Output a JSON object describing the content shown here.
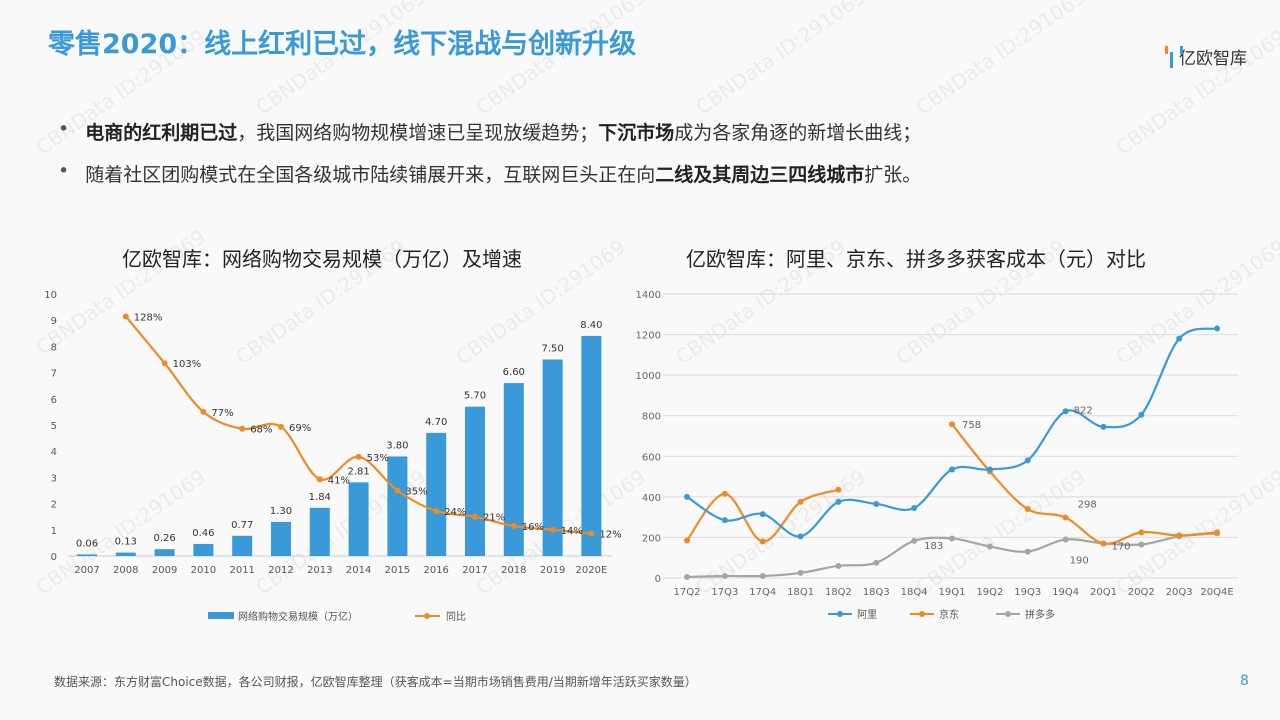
{
  "title": "零售2020：线上红利已过，线下混战与创新升级",
  "logo": "亿欧智库",
  "watermark": "CBNData ID:291069",
  "bullets": [
    {
      "b1": "电商的红利期已过",
      "t1": "，我国网络购物规模增速已呈现放缓趋势；",
      "b2": "下沉市场",
      "t2": "成为各家角逐的新增长曲线；"
    },
    {
      "t0": "随着社区团购模式在全国各级城市陆续铺展开来，互联网巨头正在向",
      "b1": "二线及其周边三四线城市",
      "t1": "扩张。"
    }
  ],
  "chart_data": [
    {
      "type": "bar",
      "title": "亿欧智库：网络购物交易规模（万亿）及增速",
      "categories": [
        "2007",
        "2008",
        "2009",
        "2010",
        "2011",
        "2012",
        "2013",
        "2014",
        "2015",
        "2016",
        "2017",
        "2018",
        "2019",
        "2020E"
      ],
      "series": [
        {
          "name": "网络购物交易规模（万亿）",
          "type": "bar",
          "color": "#3a9ad9",
          "values": [
            0.06,
            0.13,
            0.26,
            0.46,
            0.77,
            1.3,
            1.84,
            2.81,
            3.8,
            4.7,
            5.7,
            6.6,
            7.5,
            8.4
          ],
          "labels": [
            "0.06",
            "0.13",
            "0.26",
            "0.46",
            "0.77",
            "1.30",
            "1.84",
            "2.81",
            "3.80",
            "4.70",
            "5.70",
            "6.60",
            "7.50",
            "8.40"
          ]
        },
        {
          "name": "同比",
          "type": "line",
          "color": "#f08a24",
          "values": [
            null,
            128,
            103,
            77,
            68,
            69,
            41,
            53,
            35,
            24,
            21,
            16,
            14,
            12
          ],
          "labels": [
            null,
            "128%",
            "103%",
            "77%",
            "68%",
            "69%",
            "41%",
            "53%",
            "35%",
            "24%",
            "21%",
            "16%",
            "14%",
            "12%"
          ]
        }
      ],
      "yticks": [
        "0",
        "1",
        "2",
        "3",
        "4",
        "5",
        "6",
        "7",
        "8",
        "9",
        "10"
      ],
      "ylim": [
        0,
        10
      ],
      "y2lim": [
        0,
        140
      ],
      "legend": "bottom"
    },
    {
      "type": "line",
      "title": "亿欧智库：阿里、京东、拼多多获客成本（元）对比",
      "categories": [
        "17Q2",
        "17Q3",
        "17Q4",
        "18Q1",
        "18Q2",
        "18Q3",
        "18Q4",
        "19Q1",
        "19Q2",
        "19Q3",
        "19Q4",
        "20Q1",
        "20Q2",
        "20Q3",
        "20Q4E"
      ],
      "yticks": [
        "0",
        "200",
        "400",
        "600",
        "800",
        "1000",
        "1200",
        "1400"
      ],
      "ylim": [
        0,
        1400
      ],
      "legend": "bottom",
      "series": [
        {
          "name": "阿里",
          "color": "#3a9ad9",
          "values": [
            400,
            285,
            315,
            205,
            375,
            365,
            345,
            535,
            535,
            580,
            822,
            745,
            805,
            1180,
            1230
          ]
        },
        {
          "name": "京东",
          "color": "#f08a24",
          "values": [
            185,
            415,
            180,
            375,
            435,
            null,
            null,
            758,
            525,
            340,
            298,
            170,
            225,
            210,
            225
          ]
        },
        {
          "name": "拼多多",
          "color": "#a5a5a5",
          "values": [
            5,
            10,
            10,
            25,
            60,
            75,
            183,
            195,
            155,
            130,
            190,
            170,
            165,
            205,
            220
          ]
        }
      ],
      "annotations": [
        {
          "label": "822",
          "series": "阿里",
          "x": "19Q4"
        },
        {
          "label": "758",
          "series": "京东",
          "x": "19Q1"
        },
        {
          "label": "298",
          "series": "京东",
          "x": "19Q4"
        },
        {
          "label": "183",
          "series": "拼多多",
          "x": "18Q4"
        },
        {
          "label": "190",
          "series": "拼多多",
          "x": "19Q4"
        },
        {
          "label": "170",
          "series": "拼多多",
          "x": "20Q1"
        }
      ]
    }
  ],
  "footer": "数据来源：东方财富Choice数据，各公司财报，亿欧智库整理（获客成本=当期市场销售费用/当期新增年活跃买家数量）",
  "page": "8"
}
